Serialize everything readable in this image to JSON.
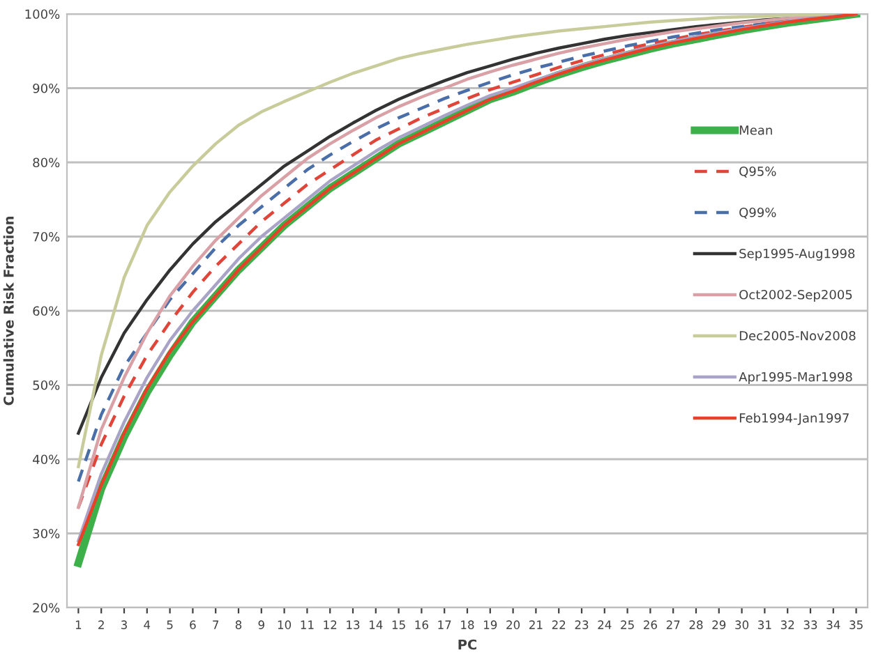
{
  "chart_data": {
    "type": "line",
    "xlabel": "PC",
    "ylabel": "Cumulative Risk Fraction",
    "categories": [
      "1",
      "2",
      "3",
      "4",
      "5",
      "6",
      "7",
      "8",
      "9",
      "10",
      "11",
      "12",
      "13",
      "14",
      "15",
      "16",
      "17",
      "18",
      "19",
      "20",
      "21",
      "22",
      "23",
      "24",
      "25",
      "26",
      "27",
      "28",
      "29",
      "30",
      "31",
      "32",
      "33",
      "34",
      "35"
    ],
    "ylim": [
      20,
      100
    ],
    "yticks": [
      {
        "value": 20,
        "label": "20%"
      },
      {
        "value": 30,
        "label": "30%"
      },
      {
        "value": 40,
        "label": "40%"
      },
      {
        "value": 50,
        "label": "50%"
      },
      {
        "value": 60,
        "label": "60%"
      },
      {
        "value": 70,
        "label": "70%"
      },
      {
        "value": 80,
        "label": "80%"
      },
      {
        "value": 90,
        "label": "90%"
      },
      {
        "value": 100,
        "label": "100%"
      }
    ],
    "grid": "y",
    "legend": "right",
    "marker": "none",
    "line_style": "solid",
    "series": [
      {
        "name": "Mean",
        "color": "#3db049",
        "values": [
          26,
          36,
          43,
          49,
          54,
          58.5,
          62,
          65.5,
          68.5,
          71.5,
          74,
          76.5,
          78.5,
          80.5,
          82.5,
          84,
          85.5,
          87,
          88.5,
          89.5,
          90.7,
          91.8,
          92.8,
          93.7,
          94.5,
          95.3,
          96,
          96.6,
          97.2,
          97.8,
          98.3,
          98.8,
          99.2,
          99.6,
          100
        ]
      },
      {
        "name": "Q95%",
        "color": "#e0453a",
        "line_style": "dashed",
        "values": [
          33.5,
          42,
          48.5,
          54,
          58.5,
          62.5,
          66,
          69,
          72,
          74.5,
          77,
          79,
          81,
          83,
          84.5,
          86,
          87.3,
          88.6,
          89.8,
          90.8,
          91.8,
          92.8,
          93.7,
          94.5,
          95.3,
          96,
          96.6,
          97.2,
          97.7,
          98.2,
          98.7,
          99.1,
          99.4,
          99.7,
          100
        ]
      },
      {
        "name": "Q99%",
        "color": "#4a6ea8",
        "line_style": "dashed",
        "values": [
          37,
          46,
          52.5,
          57,
          61.5,
          65,
          68.5,
          71.5,
          74,
          76.5,
          79,
          81,
          82.8,
          84.5,
          86,
          87.3,
          88.6,
          89.7,
          90.8,
          91.8,
          92.7,
          93.5,
          94.3,
          95,
          95.7,
          96.3,
          96.9,
          97.4,
          97.9,
          98.3,
          98.7,
          99.1,
          99.4,
          99.7,
          100
        ]
      },
      {
        "name": "Sep1995-Aug1998",
        "color": "#333333",
        "values": [
          43.5,
          51,
          57,
          61.5,
          65.5,
          69,
          72,
          74.5,
          77,
          79.5,
          81.5,
          83.5,
          85.3,
          87,
          88.5,
          89.8,
          91,
          92.1,
          93,
          93.9,
          94.7,
          95.4,
          96,
          96.6,
          97.1,
          97.5,
          97.9,
          98.3,
          98.6,
          98.9,
          99.2,
          99.4,
          99.6,
          99.8,
          100
        ]
      },
      {
        "name": "Oct2002-Sep2005",
        "color": "#d9a0a6",
        "values": [
          33.5,
          44,
          51,
          57,
          62,
          66,
          69.5,
          72.5,
          75.5,
          78,
          80.5,
          82.5,
          84.3,
          86,
          87.5,
          88.8,
          90,
          91.2,
          92.2,
          93.1,
          93.9,
          94.7,
          95.4,
          96,
          96.6,
          97.1,
          97.6,
          98,
          98.4,
          98.8,
          99.1,
          99.4,
          99.6,
          99.8,
          100
        ]
      },
      {
        "name": "Dec2005-Nov2008",
        "color": "#c8cc9a",
        "values": [
          39,
          54,
          64.5,
          71.5,
          76,
          79.5,
          82.5,
          85,
          86.8,
          88.2,
          89.5,
          90.8,
          92,
          93,
          94,
          94.7,
          95.3,
          95.9,
          96.4,
          96.9,
          97.3,
          97.7,
          98,
          98.3,
          98.6,
          98.9,
          99.1,
          99.3,
          99.5,
          99.6,
          99.7,
          99.8,
          99.9,
          100,
          100
        ]
      },
      {
        "name": "Apr1995-Mar1998",
        "color": "#a9a3c8",
        "values": [
          29,
          38,
          45,
          51,
          56,
          60,
          63.5,
          67,
          70,
          72.5,
          75,
          77.5,
          79.5,
          81.5,
          83.3,
          84.8,
          86.3,
          87.7,
          89,
          90,
          91.1,
          92.1,
          93.1,
          94,
          94.8,
          95.6,
          96.3,
          96.9,
          97.5,
          98,
          98.5,
          99,
          99.4,
          99.7,
          100
        ]
      },
      {
        "name": "Feb1994-Jan1997",
        "color": "#e8412a",
        "values": [
          28.5,
          36.5,
          43.5,
          49.5,
          54.5,
          58.5,
          62,
          65.5,
          68.5,
          71.5,
          74,
          76.5,
          78.5,
          80.5,
          82.5,
          84,
          85.5,
          87,
          88.5,
          89.6,
          90.8,
          91.9,
          92.9,
          93.8,
          94.6,
          95.4,
          96.1,
          96.7,
          97.3,
          97.9,
          98.4,
          98.9,
          99.3,
          99.6,
          100
        ]
      }
    ]
  }
}
